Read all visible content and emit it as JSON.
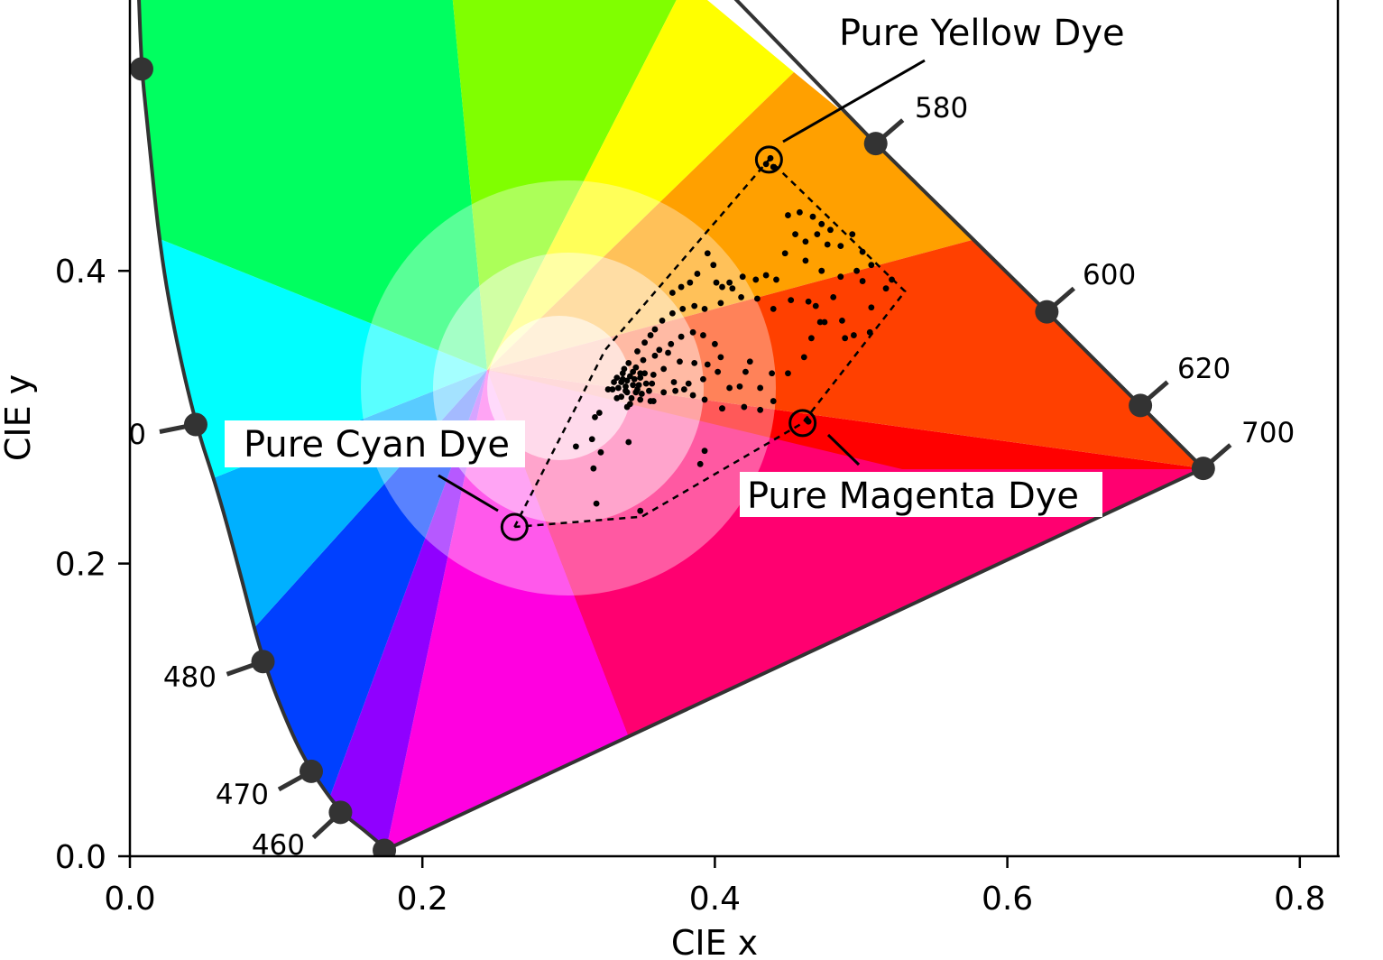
{
  "chart_data": {
    "type": "scatter",
    "title": "",
    "xlabel": "CIE x",
    "ylabel": "CIE y",
    "xlim": [
      0.0,
      0.82
    ],
    "ylim": [
      0.0,
      0.59
    ],
    "x_ticks": [
      {
        "value": 0.0,
        "label": "0.0"
      },
      {
        "value": 0.2,
        "label": "0.2"
      },
      {
        "value": 0.4,
        "label": "0.4"
      },
      {
        "value": 0.6,
        "label": "0.6"
      },
      {
        "value": 0.8,
        "label": "0.8"
      }
    ],
    "y_ticks": [
      {
        "value": 0.0,
        "label": "0.0"
      },
      {
        "value": 0.2,
        "label": "0.2"
      },
      {
        "value": 0.4,
        "label": "0.4"
      }
    ],
    "spectral_locus": [
      [
        0.175,
        0.005
      ],
      [
        0.16,
        0.018
      ],
      [
        0.144,
        0.03
      ],
      [
        0.124,
        0.058
      ],
      [
        0.11,
        0.085
      ],
      [
        0.091,
        0.133
      ],
      [
        0.075,
        0.195
      ],
      [
        0.06,
        0.25
      ],
      [
        0.045,
        0.295
      ],
      [
        0.03,
        0.36
      ],
      [
        0.02,
        0.42
      ],
      [
        0.012,
        0.5
      ],
      [
        0.008,
        0.538
      ],
      [
        0.006,
        0.59
      ]
    ],
    "locus_top_right": [
      [
        0.41,
        0.59
      ],
      [
        0.51,
        0.487
      ],
      [
        0.627,
        0.372
      ],
      [
        0.691,
        0.308
      ],
      [
        0.734,
        0.265
      ]
    ],
    "wavelength_markers": [
      {
        "label": "460",
        "x": 0.144,
        "y": 0.03
      },
      {
        "label": "470",
        "x": 0.124,
        "y": 0.058
      },
      {
        "label": "480",
        "x": 0.091,
        "y": 0.133
      },
      {
        "label": "0",
        "x": 0.045,
        "y": 0.295
      },
      {
        "label": "",
        "x": 0.008,
        "y": 0.538
      },
      {
        "label": "580",
        "x": 0.51,
        "y": 0.487
      },
      {
        "label": "600",
        "x": 0.627,
        "y": 0.372
      },
      {
        "label": "620",
        "x": 0.691,
        "y": 0.308
      },
      {
        "label": "700",
        "x": 0.734,
        "y": 0.265
      },
      {
        "label": "",
        "x": 0.174,
        "y": 0.004
      }
    ],
    "gamut_boundary": [
      [
        0.263,
        0.225
      ],
      [
        0.325,
        0.346
      ],
      [
        0.437,
        0.476
      ],
      [
        0.53,
        0.386
      ],
      [
        0.46,
        0.296
      ],
      [
        0.35,
        0.232
      ],
      [
        0.263,
        0.225
      ]
    ],
    "dye_points": [
      {
        "label": "Pure Yellow Dye",
        "x": 0.437,
        "y": 0.476
      },
      {
        "label": "Pure Cyan Dye",
        "x": 0.263,
        "y": 0.225
      },
      {
        "label": "Pure Magenta Dye",
        "x": 0.46,
        "y": 0.296
      }
    ],
    "samples": [
      [
        0.435,
        0.473
      ],
      [
        0.438,
        0.477
      ],
      [
        0.44,
        0.471
      ],
      [
        0.45,
        0.438
      ],
      [
        0.458,
        0.44
      ],
      [
        0.467,
        0.437
      ],
      [
        0.473,
        0.432
      ],
      [
        0.455,
        0.425
      ],
      [
        0.462,
        0.42
      ],
      [
        0.47,
        0.425
      ],
      [
        0.479,
        0.428
      ],
      [
        0.477,
        0.418
      ],
      [
        0.486,
        0.417
      ],
      [
        0.494,
        0.425
      ],
      [
        0.501,
        0.413
      ],
      [
        0.507,
        0.404
      ],
      [
        0.497,
        0.4
      ],
      [
        0.486,
        0.396
      ],
      [
        0.473,
        0.4
      ],
      [
        0.462,
        0.407
      ],
      [
        0.448,
        0.412
      ],
      [
        0.442,
        0.394
      ],
      [
        0.435,
        0.397
      ],
      [
        0.428,
        0.394
      ],
      [
        0.419,
        0.396
      ],
      [
        0.412,
        0.388
      ],
      [
        0.405,
        0.389
      ],
      [
        0.401,
        0.392
      ],
      [
        0.399,
        0.404
      ],
      [
        0.395,
        0.412
      ],
      [
        0.388,
        0.398
      ],
      [
        0.383,
        0.392
      ],
      [
        0.377,
        0.389
      ],
      [
        0.371,
        0.385
      ],
      [
        0.371,
        0.371
      ],
      [
        0.378,
        0.374
      ],
      [
        0.386,
        0.376
      ],
      [
        0.393,
        0.374
      ],
      [
        0.404,
        0.378
      ],
      [
        0.418,
        0.382
      ],
      [
        0.429,
        0.381
      ],
      [
        0.44,
        0.374
      ],
      [
        0.452,
        0.38
      ],
      [
        0.469,
        0.376
      ],
      [
        0.481,
        0.382
      ],
      [
        0.501,
        0.393
      ],
      [
        0.517,
        0.388
      ],
      [
        0.521,
        0.394
      ],
      [
        0.507,
        0.375
      ],
      [
        0.487,
        0.366
      ],
      [
        0.472,
        0.365
      ],
      [
        0.466,
        0.354
      ],
      [
        0.489,
        0.354
      ],
      [
        0.495,
        0.356
      ],
      [
        0.506,
        0.358
      ],
      [
        0.41,
        0.392
      ],
      [
        0.364,
        0.366
      ],
      [
        0.359,
        0.36
      ],
      [
        0.356,
        0.356
      ],
      [
        0.352,
        0.351
      ],
      [
        0.362,
        0.346
      ],
      [
        0.37,
        0.35
      ],
      [
        0.377,
        0.355
      ],
      [
        0.385,
        0.358
      ],
      [
        0.392,
        0.356
      ],
      [
        0.4,
        0.35
      ],
      [
        0.404,
        0.341
      ],
      [
        0.395,
        0.336
      ],
      [
        0.386,
        0.337
      ],
      [
        0.376,
        0.338
      ],
      [
        0.368,
        0.344
      ],
      [
        0.359,
        0.342
      ],
      [
        0.351,
        0.339
      ],
      [
        0.347,
        0.345
      ],
      [
        0.349,
        0.33
      ],
      [
        0.358,
        0.329
      ],
      [
        0.365,
        0.333
      ],
      [
        0.372,
        0.324
      ],
      [
        0.379,
        0.319
      ],
      [
        0.385,
        0.315
      ],
      [
        0.392,
        0.326
      ],
      [
        0.402,
        0.331
      ],
      [
        0.41,
        0.32
      ],
      [
        0.421,
        0.331
      ],
      [
        0.431,
        0.32
      ],
      [
        0.45,
        0.33
      ],
      [
        0.461,
        0.341
      ],
      [
        0.44,
        0.311
      ],
      [
        0.431,
        0.305
      ],
      [
        0.405,
        0.306
      ],
      [
        0.393,
        0.312
      ],
      [
        0.382,
        0.323
      ],
      [
        0.373,
        0.318
      ],
      [
        0.365,
        0.317
      ],
      [
        0.358,
        0.311
      ],
      [
        0.349,
        0.312
      ],
      [
        0.34,
        0.307
      ],
      [
        0.333,
        0.313
      ],
      [
        0.327,
        0.319
      ],
      [
        0.321,
        0.303
      ],
      [
        0.318,
        0.3
      ],
      [
        0.316,
        0.285
      ],
      [
        0.322,
        0.276
      ],
      [
        0.317,
        0.265
      ],
      [
        0.305,
        0.28
      ],
      [
        0.319,
        0.241
      ],
      [
        0.341,
        0.283
      ],
      [
        0.356,
        0.311
      ],
      [
        0.336,
        0.324
      ],
      [
        0.339,
        0.318
      ],
      [
        0.344,
        0.322
      ],
      [
        0.342,
        0.328
      ],
      [
        0.337,
        0.33
      ],
      [
        0.333,
        0.327
      ],
      [
        0.331,
        0.324
      ],
      [
        0.338,
        0.333
      ],
      [
        0.341,
        0.337
      ],
      [
        0.346,
        0.334
      ],
      [
        0.349,
        0.327
      ],
      [
        0.352,
        0.33
      ],
      [
        0.347,
        0.319
      ],
      [
        0.343,
        0.313
      ],
      [
        0.34,
        0.317
      ],
      [
        0.336,
        0.314
      ],
      [
        0.33,
        0.319
      ],
      [
        0.353,
        0.323
      ],
      [
        0.355,
        0.318
      ],
      [
        0.342,
        0.309
      ],
      [
        0.339,
        0.321
      ],
      [
        0.345,
        0.326
      ],
      [
        0.348,
        0.322
      ],
      [
        0.334,
        0.32
      ],
      [
        0.337,
        0.326
      ],
      [
        0.344,
        0.331
      ],
      [
        0.35,
        0.316
      ],
      [
        0.357,
        0.323
      ],
      [
        0.34,
        0.325
      ],
      [
        0.346,
        0.317
      ],
      [
        0.393,
        0.277
      ],
      [
        0.39,
        0.268
      ],
      [
        0.349,
        0.236
      ],
      [
        0.463,
        0.298
      ],
      [
        0.464,
        0.297
      ],
      [
        0.405,
        0.306
      ],
      [
        0.417,
        0.321
      ],
      [
        0.42,
        0.307
      ],
      [
        0.424,
        0.338
      ],
      [
        0.439,
        0.33
      ],
      [
        0.464,
        0.379
      ],
      [
        0.475,
        0.365
      ]
    ]
  }
}
